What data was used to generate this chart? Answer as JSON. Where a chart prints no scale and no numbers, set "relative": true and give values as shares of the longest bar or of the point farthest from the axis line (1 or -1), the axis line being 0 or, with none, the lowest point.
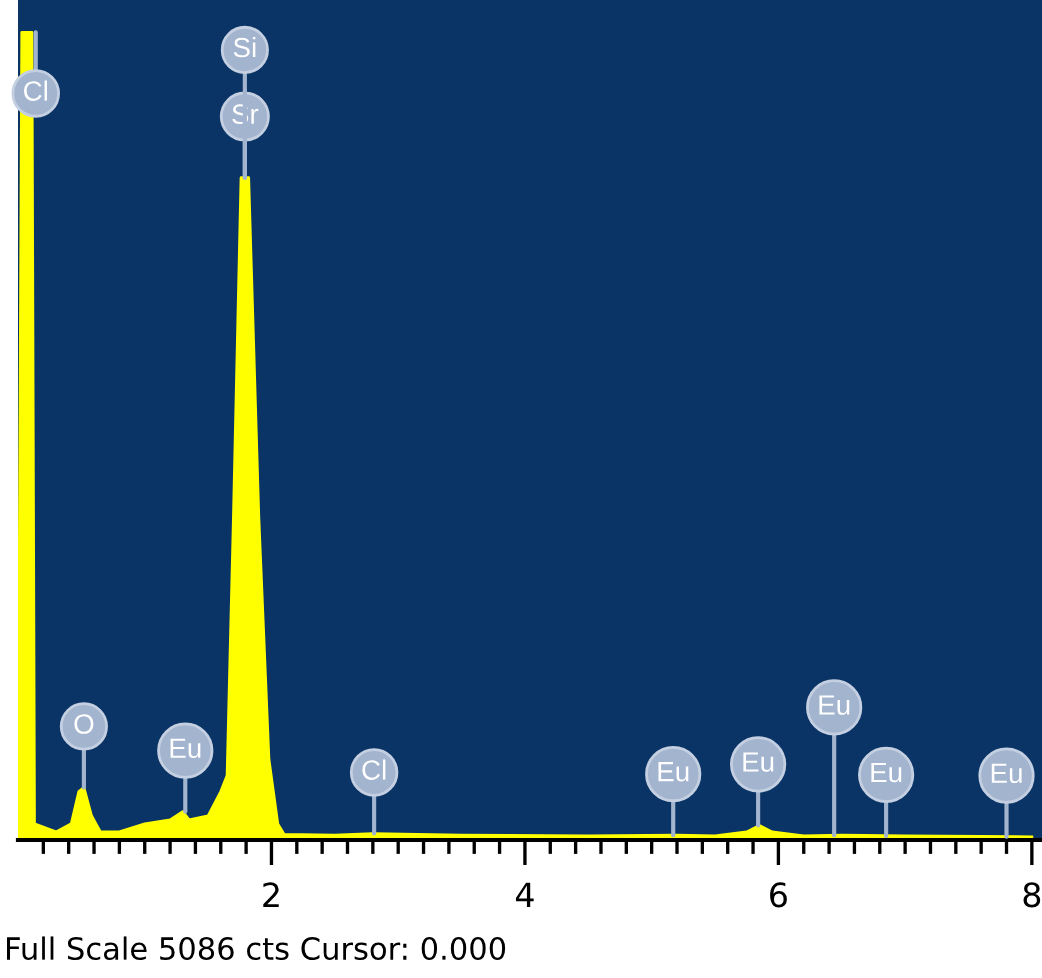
{
  "chart_data": {
    "type": "area",
    "relative": true,
    "x": [
      0.0,
      0.03,
      0.11,
      0.13,
      0.3,
      0.42,
      0.48,
      0.52,
      0.58,
      0.65,
      0.8,
      1.0,
      1.2,
      1.3,
      1.35,
      1.5,
      1.6,
      1.65,
      1.7,
      1.76,
      1.82,
      1.9,
      1.98,
      2.05,
      2.1,
      2.5,
      2.8,
      3.5,
      4.5,
      5.2,
      5.5,
      5.75,
      5.85,
      5.95,
      6.2,
      6.5,
      7.0,
      8.0
    ],
    "series": [
      {
        "color": "#ffff00",
        "values": [
          0,
          1.0,
          1.0,
          0.02,
          0.01,
          0.02,
          0.06,
          0.065,
          0.03,
          0.01,
          0.01,
          0.02,
          0.025,
          0.035,
          0.025,
          0.03,
          0.06,
          0.08,
          0.4,
          0.82,
          0.82,
          0.4,
          0.1,
          0.02,
          0.007,
          0.006,
          0.008,
          0.006,
          0.005,
          0.006,
          0.005,
          0.01,
          0.018,
          0.01,
          0.005,
          0.006,
          0.005,
          0.004
        ]
      }
    ],
    "xlim": [
      0,
      8.08
    ],
    "xticks": [
      {
        "value": 0.2,
        "label": null
      },
      {
        "value": 0.4,
        "label": null
      },
      {
        "value": 0.6,
        "label": null
      },
      {
        "value": 0.8,
        "label": null
      },
      {
        "value": 1.0,
        "label": null
      },
      {
        "value": 1.2,
        "label": null
      },
      {
        "value": 1.4,
        "label": null
      },
      {
        "value": 1.6,
        "label": null
      },
      {
        "value": 1.8,
        "label": null
      },
      2,
      {
        "value": 2.2,
        "label": null
      },
      {
        "value": 2.4,
        "label": null
      },
      {
        "value": 2.6,
        "label": null
      },
      {
        "value": 2.8,
        "label": null
      },
      {
        "value": 3.0,
        "label": null
      },
      {
        "value": 3.2,
        "label": null
      },
      {
        "value": 3.4,
        "label": null
      },
      {
        "value": 3.6,
        "label": null
      },
      {
        "value": 3.8,
        "label": null
      },
      4,
      {
        "value": 4.2,
        "label": null
      },
      {
        "value": 4.4,
        "label": null
      },
      {
        "value": 4.6,
        "label": null
      },
      {
        "value": 4.8,
        "label": null
      },
      {
        "value": 5.0,
        "label": null
      },
      {
        "value": 5.2,
        "label": null
      },
      {
        "value": 5.4,
        "label": null
      },
      {
        "value": 5.6,
        "label": null
      },
      {
        "value": 5.8,
        "label": null
      },
      6,
      {
        "value": 6.2,
        "label": null
      },
      {
        "value": 6.4,
        "label": null
      },
      {
        "value": 6.6,
        "label": null
      },
      {
        "value": 6.8,
        "label": null
      },
      {
        "value": 7.0,
        "label": null
      },
      {
        "value": 7.2,
        "label": null
      },
      {
        "value": 7.4,
        "label": null
      },
      {
        "value": 7.6,
        "label": null
      },
      {
        "value": 7.8,
        "label": null
      },
      8
    ],
    "grid": false,
    "annotations": [
      {
        "text": "Cl",
        "x": 0.14,
        "y": 1.0
      },
      {
        "text": "O",
        "x": 0.52,
        "y": 0.065
      },
      {
        "text": "Eu",
        "x": 1.32,
        "y": 0.035
      },
      {
        "text": "Sr",
        "x": 1.79,
        "y": 0.82
      },
      {
        "text": "Si",
        "x": 1.79,
        "y": 0.82
      },
      {
        "text": "Cl",
        "x": 2.81,
        "y": 0.008
      },
      {
        "text": "Eu",
        "x": 5.17,
        "y": 0.006
      },
      {
        "text": "Eu",
        "x": 5.84,
        "y": 0.018
      },
      {
        "text": "Eu",
        "x": 6.44,
        "y": 0.006
      },
      {
        "text": "Eu",
        "x": 6.85,
        "y": 0.005
      },
      {
        "text": "Eu",
        "x": 7.8,
        "y": 0.004
      },
      "Full Scale 5086 cts Cursor: 0.000"
    ]
  }
}
